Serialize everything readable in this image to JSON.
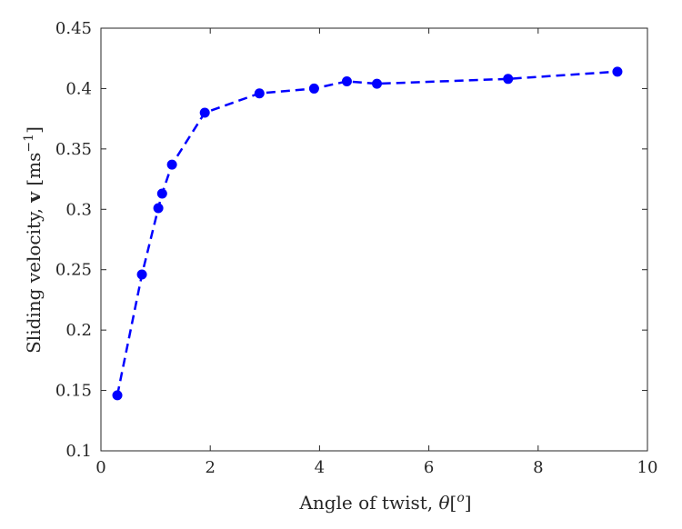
{
  "chart_data": {
    "type": "line",
    "xlabel": {
      "prefix": "Angle of twist, ",
      "symbol": "θ",
      "bracket_open": "[",
      "sup": "o",
      "bracket_close": "]"
    },
    "ylabel": {
      "prefix": "Sliding velocity, ",
      "bold": "v",
      "bracket_open": " [ms",
      "sup": "−1",
      "bracket_close": "]"
    },
    "xlim": [
      0,
      10
    ],
    "ylim": [
      0.1,
      0.45
    ],
    "xticks": [
      0,
      2,
      4,
      6,
      8,
      10
    ],
    "yticks": [
      0.1,
      0.15,
      0.2,
      0.25,
      0.3,
      0.35,
      0.4,
      0.45
    ],
    "ytick_labels": [
      "0.1",
      "0.15",
      "0.2",
      "0.25",
      "0.3",
      "0.35",
      "0.4",
      "0.45"
    ],
    "grid": false,
    "series": [
      {
        "color": "#0000ff",
        "line_style": "dashed",
        "marker": "circle",
        "x": [
          0.3,
          0.75,
          1.05,
          1.12,
          1.3,
          1.9,
          2.9,
          3.9,
          4.5,
          5.05,
          7.45,
          9.45
        ],
        "y": [
          0.146,
          0.246,
          0.301,
          0.313,
          0.337,
          0.38,
          0.396,
          0.4,
          0.406,
          0.404,
          0.408,
          0.414
        ]
      }
    ]
  }
}
